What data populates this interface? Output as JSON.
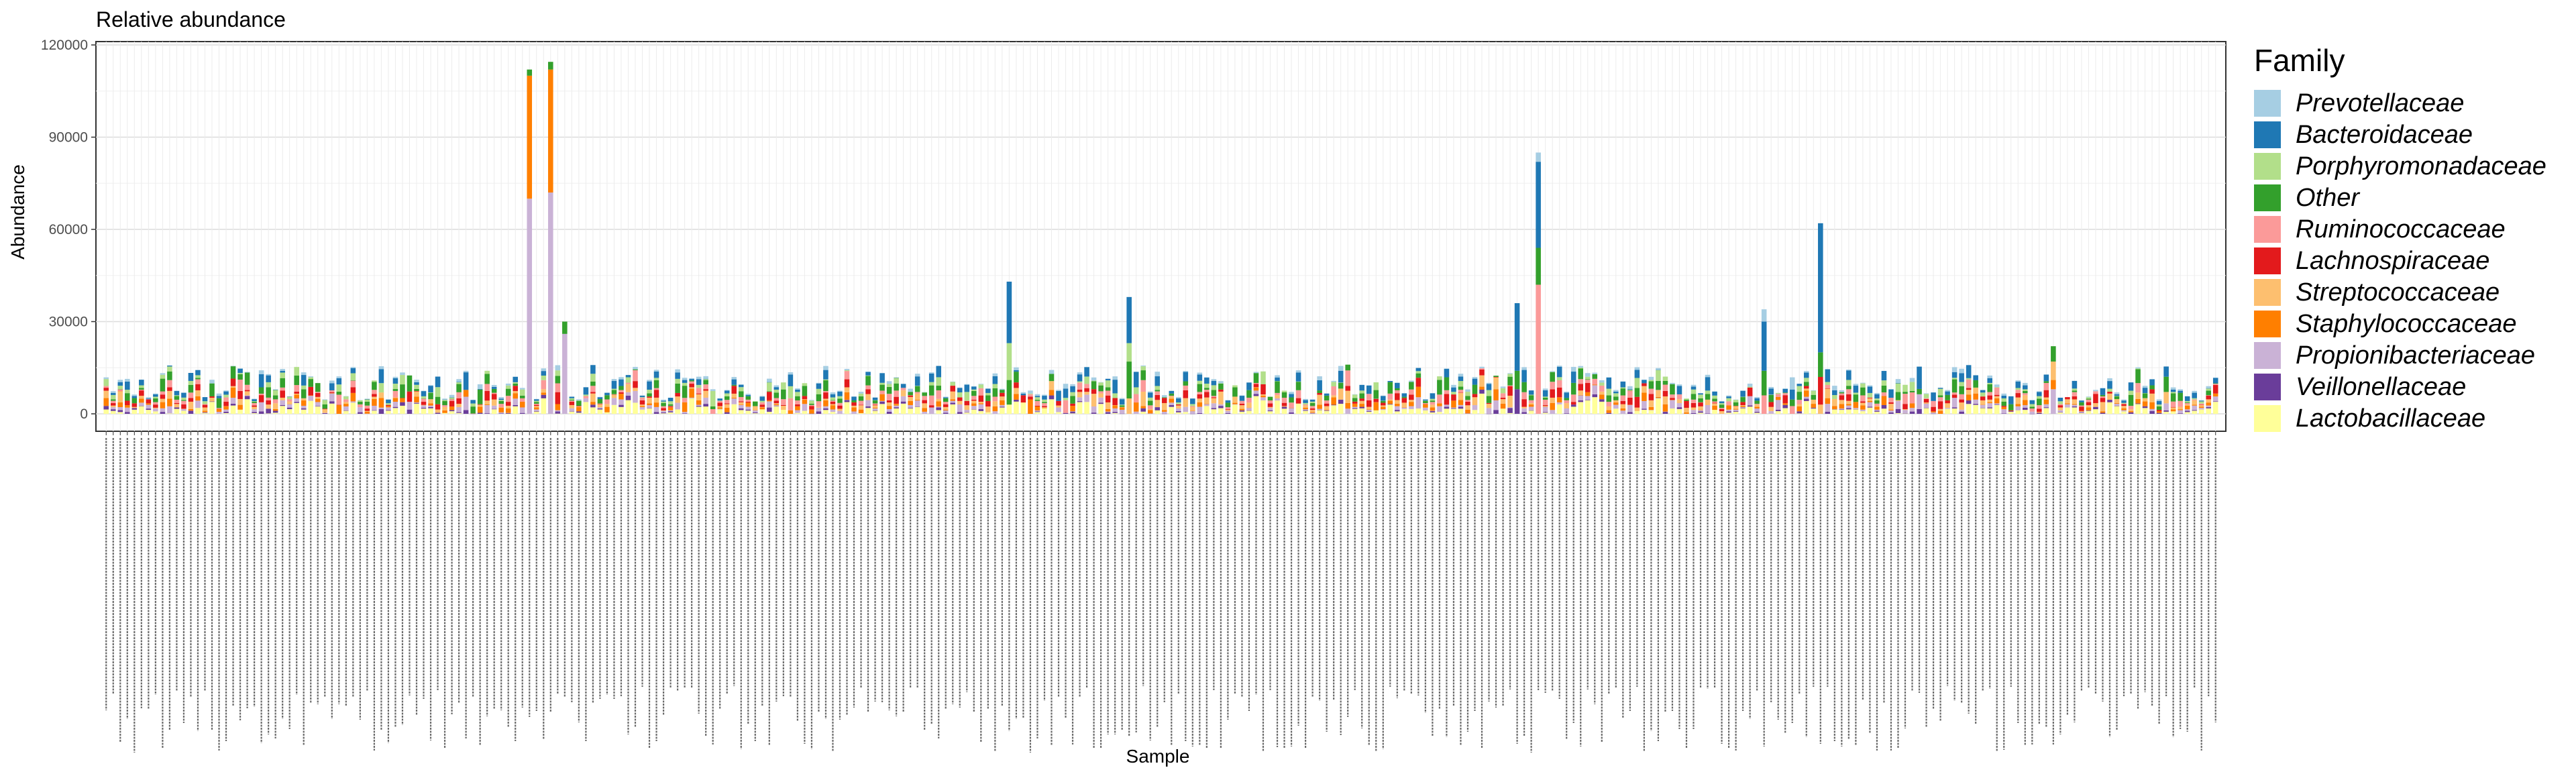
{
  "chart_data": {
    "type": "bar",
    "stacked": true,
    "title": "Relative abundance",
    "xlabel": "Sample",
    "ylabel": "Abundance",
    "ylim": [
      0,
      120000
    ],
    "yticks": [
      0,
      30000,
      60000,
      90000,
      120000
    ],
    "ytick_labels": [
      "0",
      "30000",
      "60000",
      "90000",
      "120000"
    ],
    "grid": true,
    "legend_position": "right",
    "legend_title": "Family",
    "series": [
      {
        "name": "Prevotellaceae",
        "color": "#a6cee3"
      },
      {
        "name": "Bacteroidaceae",
        "color": "#1f78b4"
      },
      {
        "name": "Porphyromonadaceae",
        "color": "#b2df8a"
      },
      {
        "name": "Other",
        "color": "#33a02c"
      },
      {
        "name": "Ruminococcaceae",
        "color": "#fb9a99"
      },
      {
        "name": "Lachnospiraceae",
        "color": "#e31a1c"
      },
      {
        "name": "Streptococcaceae",
        "color": "#fdbf6f"
      },
      {
        "name": "Staphylococcaceae",
        "color": "#ff7f00"
      },
      {
        "name": "Propionibacteriaceae",
        "color": "#cab2d6"
      },
      {
        "name": "Veillonellaceae",
        "color": "#6a3d9a"
      },
      {
        "name": "Lactobacillaceae",
        "color": "#ffff99"
      }
    ],
    "n_samples": 300,
    "highlighted_samples": [
      {
        "index": 60,
        "segments": {
          "Staphylococcaceae": 40000,
          "Propionibacteriaceae": 70000,
          "Other": 2000
        }
      },
      {
        "index": 63,
        "segments": {
          "Staphylococcaceae": 40000,
          "Propionibacteriaceae": 72000,
          "Other": 2500
        }
      },
      {
        "index": 65,
        "segments": {
          "Propionibacteriaceae": 26000,
          "Other": 4000
        }
      },
      {
        "index": 128,
        "segments": {
          "Bacteroidaceae": 20000,
          "Porphyromonadaceae": 12000,
          "Other": 8000,
          "Lactobacillaceae": 3000
        }
      },
      {
        "index": 145,
        "segments": {
          "Bacteroidaceae": 15000,
          "Other": 12000,
          "Porphyromonadaceae": 6000,
          "Streptococcaceae": 5000
        }
      },
      {
        "index": 203,
        "segments": {
          "Bacteroidaceae": 28000,
          "Other": 12000,
          "Ruminococcaceae": 42000,
          "Prevotellaceae": 3000
        }
      },
      {
        "index": 200,
        "segments": {
          "Bacteroidaceae": 22000,
          "Veillonellaceae": 8000,
          "Other": 6000
        }
      },
      {
        "index": 243,
        "segments": {
          "Bacteroidaceae": 42000,
          "Other": 8000,
          "Lachnospiraceae": 9000,
          "Streptococcaceae": 3000
        }
      },
      {
        "index": 235,
        "segments": {
          "Bacteroidaceae": 16000,
          "Other": 8000,
          "Ruminococcaceae": 6000,
          "Prevotellaceae": 4000
        }
      },
      {
        "index": 276,
        "segments": {
          "Propionibacteriaceae": 8000,
          "Streptococcaceae": 6000,
          "Other": 5000,
          "Staphylococcaceae": 3000
        }
      }
    ],
    "typical_sample_range": [
      4000,
      16000
    ]
  }
}
